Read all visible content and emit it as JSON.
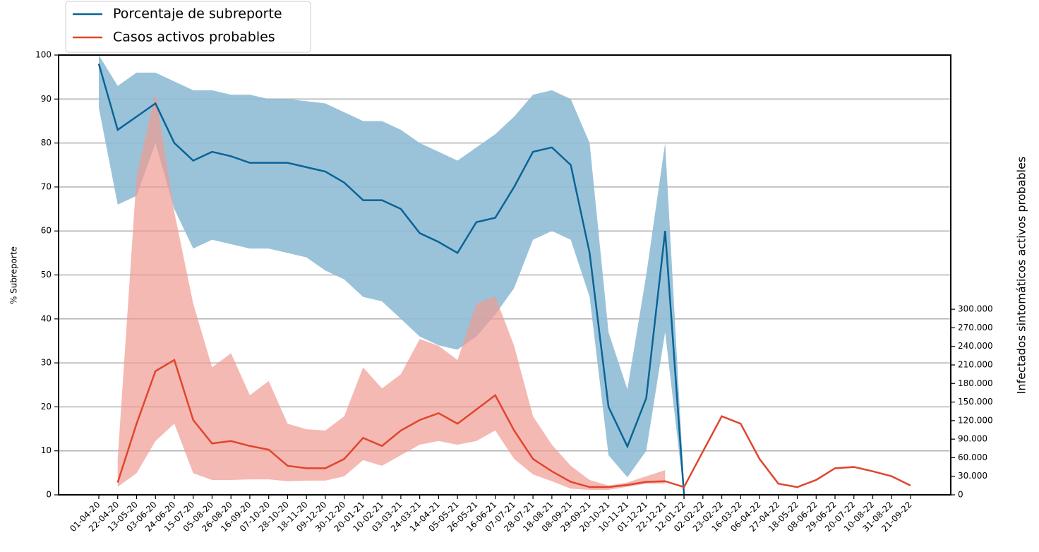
{
  "chart_data": {
    "type": "line",
    "y_label": "% Subreporte",
    "y2_label": "Infectados sintomáticos activos probables",
    "categories": [
      "01-04-20",
      "22-04-20",
      "13-05-20",
      "03-06-20",
      "24-06-20",
      "15-07-20",
      "05-08-20",
      "26-08-20",
      "16-09-20",
      "07-10-20",
      "28-10-20",
      "18-11-20",
      "09-12-20",
      "30-12-20",
      "20-01-21",
      "10-02-21",
      "03-03-21",
      "24-03-21",
      "14-04-21",
      "05-05-21",
      "26-05-21",
      "16-06-21",
      "07-07-21",
      "28-07-21",
      "18-08-21",
      "08-09-21",
      "29-09-21",
      "20-10-21",
      "10-11-21",
      "01-12-21",
      "22-12-21",
      "12-01-22",
      "02-02-22",
      "23-02-22",
      "16-03-22",
      "06-04-22",
      "27-04-22",
      "18-05-22",
      "08-06-22",
      "29-06-22",
      "20-07-22",
      "10-08-22",
      "31-08-22",
      "21-09-22"
    ],
    "ylim": [
      0,
      100
    ],
    "yticks": [
      0,
      10,
      20,
      30,
      40,
      50,
      60,
      70,
      80,
      90,
      100
    ],
    "y2lim": [
      0,
      711000
    ],
    "y2ticks": [
      0,
      {
        "value": 30000,
        "label": "30.000"
      },
      {
        "value": 60000,
        "label": "60.000"
      },
      {
        "value": 90000,
        "label": "90.000"
      },
      {
        "value": 120000,
        "label": "120.000"
      },
      {
        "value": 150000,
        "label": "150.000"
      },
      {
        "value": 180000,
        "label": "180.000"
      },
      {
        "value": 210000,
        "label": "210.000"
      },
      {
        "value": 240000,
        "label": "240.000"
      },
      {
        "value": 270000,
        "label": "270.000"
      },
      {
        "value": 300000,
        "label": "300.000"
      }
    ],
    "grid": true,
    "legend": "top-left",
    "series": [
      {
        "name": "Porcentaje de subreporte",
        "color": "#0a6396",
        "band_color": "#8fbcd6",
        "values": [
          98,
          83,
          86,
          89,
          80,
          76,
          78,
          77,
          75.5,
          75.5,
          75.5,
          74.5,
          73.5,
          71,
          67,
          67,
          65,
          59.5,
          57.5,
          55,
          62,
          63,
          70,
          78,
          79,
          75,
          55,
          20,
          11,
          22,
          60,
          0,
          null,
          null,
          null,
          null,
          null,
          null,
          null,
          null,
          null,
          null,
          null,
          null
        ],
        "lower": [
          88,
          66,
          68,
          80,
          65,
          56,
          58,
          57,
          56,
          56,
          55,
          54,
          51,
          49,
          45,
          44,
          40,
          36,
          34,
          33,
          36,
          41,
          47,
          58,
          60,
          58,
          45,
          9,
          4,
          10,
          37,
          0,
          null,
          null,
          null,
          null,
          null,
          null,
          null,
          null,
          null,
          null,
          null,
          null
        ],
        "upper": [
          100,
          93,
          96,
          96,
          94,
          92,
          92,
          91,
          91,
          90,
          90,
          89.5,
          89,
          87,
          85,
          85,
          83,
          80,
          78,
          76,
          79,
          82,
          86,
          91,
          92,
          90,
          80,
          37,
          24,
          50,
          80,
          2,
          null,
          null,
          null,
          null,
          null,
          null,
          null,
          null,
          null,
          null,
          null,
          null
        ]
      },
      {
        "name": "Casos activos probables",
        "color": "#e0452e",
        "band_color": "#ef9b91",
        "axis": "y2",
        "values": [
          null,
          20000,
          115000,
          200000,
          218000,
          121000,
          83000,
          87000,
          79000,
          73000,
          47000,
          43000,
          43000,
          58000,
          92000,
          79000,
          104000,
          121000,
          132000,
          115000,
          138000,
          161000,
          104000,
          58000,
          38000,
          21000,
          12500,
          12500,
          16000,
          21000,
          22000,
          12500,
          70000,
          127000,
          115000,
          58000,
          18000,
          12500,
          24000,
          43000,
          45000,
          38000,
          30000,
          15000
        ],
        "lower": [
          null,
          13000,
          35000,
          87000,
          115000,
          35000,
          24000,
          24000,
          25000,
          25000,
          22000,
          23000,
          23000,
          30000,
          56000,
          47000,
          64000,
          81000,
          87000,
          81000,
          87000,
          104000,
          58000,
          33000,
          22000,
          10000,
          8000,
          8000,
          13000,
          18000,
          18000,
          null,
          null,
          null,
          null,
          null,
          null,
          null,
          null,
          null,
          null,
          null,
          null,
          null
        ],
        "upper": [
          null,
          58000,
          515000,
          650000,
          457000,
          309000,
          206000,
          229000,
          161000,
          184000,
          115000,
          106000,
          104000,
          127000,
          206000,
          172000,
          195000,
          252000,
          241000,
          218000,
          309000,
          321000,
          241000,
          127000,
          81000,
          47000,
          24000,
          15000,
          20000,
          30000,
          40000,
          null,
          null,
          null,
          null,
          null,
          null,
          null,
          null,
          null,
          null,
          null,
          null,
          null
        ]
      }
    ]
  }
}
